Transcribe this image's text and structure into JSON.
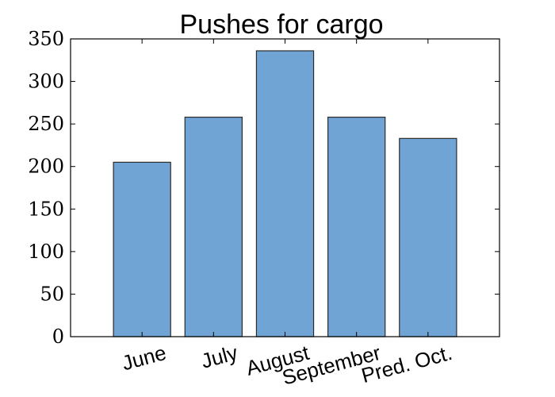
{
  "chart_data": {
    "type": "bar",
    "title": "Pushes for cargo",
    "categories": [
      "June",
      "July",
      "August",
      "September",
      "Pred. Oct."
    ],
    "values": [
      205,
      258,
      336,
      258,
      233
    ],
    "ylim": [
      0,
      350
    ],
    "yticks": [
      0,
      50,
      100,
      150,
      200,
      250,
      300,
      350
    ],
    "bar_color": "#6fa4d4",
    "grid": false
  }
}
